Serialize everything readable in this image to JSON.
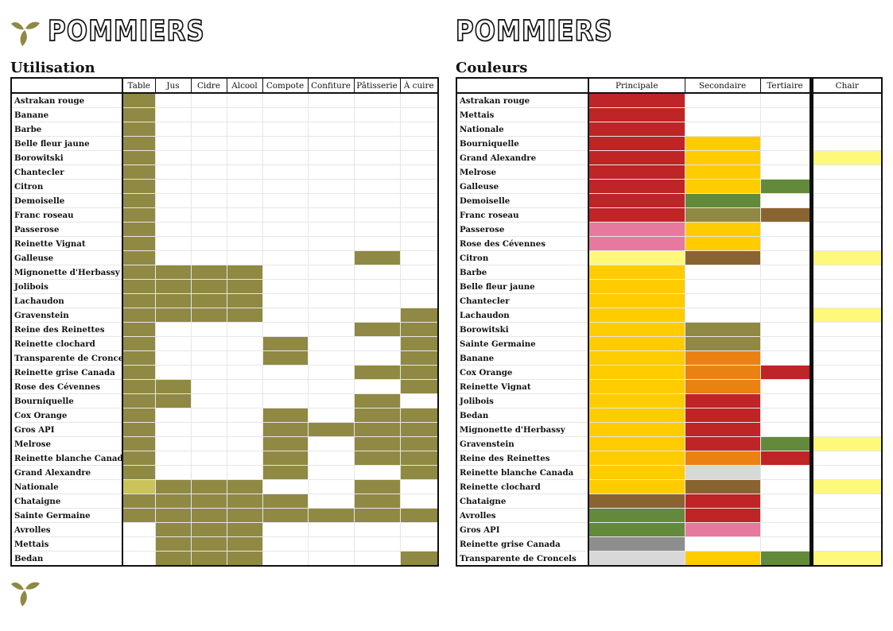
{
  "header": {
    "left_title": "POMMIERS",
    "right_title": "POMMIERS"
  },
  "colors": {
    "olive": "#8f8943",
    "olive_light": "#c9c35a",
    "red": "#bf2427",
    "yellow": "#ffcc00",
    "green": "#628a3a",
    "khaki": "#8f8943",
    "brown": "#8a6430",
    "pink": "#e7789e",
    "pale_yellow": "#fef97a",
    "orange": "#ea8212",
    "grey": "#8e8e8e",
    "light_grey": "#d8d8d8"
  },
  "utilisation": {
    "title": "Utilisation",
    "columns": [
      "Table",
      "Jus",
      "Cidre",
      "Alcool",
      "Compote",
      "Confiture",
      "Pâtisserie",
      "À cuire"
    ],
    "rows": [
      {
        "name": "Astrakan rouge",
        "cells": [
          1,
          0,
          0,
          0,
          0,
          0,
          0,
          0
        ]
      },
      {
        "name": "Banane",
        "cells": [
          1,
          0,
          0,
          0,
          0,
          0,
          0,
          0
        ]
      },
      {
        "name": "Barbe",
        "cells": [
          1,
          0,
          0,
          0,
          0,
          0,
          0,
          0
        ]
      },
      {
        "name": "Belle fleur jaune",
        "cells": [
          1,
          0,
          0,
          0,
          0,
          0,
          0,
          0
        ]
      },
      {
        "name": "Borowitski",
        "cells": [
          1,
          0,
          0,
          0,
          0,
          0,
          0,
          0
        ]
      },
      {
        "name": "Chantecler",
        "cells": [
          1,
          0,
          0,
          0,
          0,
          0,
          0,
          0
        ]
      },
      {
        "name": "Citron",
        "cells": [
          1,
          0,
          0,
          0,
          0,
          0,
          0,
          0
        ]
      },
      {
        "name": "Demoiselle",
        "cells": [
          1,
          0,
          0,
          0,
          0,
          0,
          0,
          0
        ]
      },
      {
        "name": "Franc roseau",
        "cells": [
          1,
          0,
          0,
          0,
          0,
          0,
          0,
          0
        ]
      },
      {
        "name": "Passerose",
        "cells": [
          1,
          0,
          0,
          0,
          0,
          0,
          0,
          0
        ]
      },
      {
        "name": "Reinette Vignat",
        "cells": [
          1,
          0,
          0,
          0,
          0,
          0,
          0,
          0
        ]
      },
      {
        "name": "Galleuse",
        "cells": [
          1,
          0,
          0,
          0,
          0,
          0,
          1,
          0
        ]
      },
      {
        "name": "Mignonette d'Herbassy",
        "cells": [
          1,
          1,
          1,
          1,
          0,
          0,
          0,
          0
        ]
      },
      {
        "name": "Jolibois",
        "cells": [
          1,
          1,
          1,
          1,
          0,
          0,
          0,
          0
        ]
      },
      {
        "name": "Lachaudon",
        "cells": [
          1,
          1,
          1,
          1,
          0,
          0,
          0,
          0
        ]
      },
      {
        "name": "Gravenstein",
        "cells": [
          1,
          1,
          1,
          1,
          0,
          0,
          0,
          1
        ]
      },
      {
        "name": "Reine des Reinettes",
        "cells": [
          1,
          0,
          0,
          0,
          0,
          0,
          1,
          1
        ]
      },
      {
        "name": "Reinette clochard",
        "cells": [
          1,
          0,
          0,
          0,
          1,
          0,
          0,
          1
        ]
      },
      {
        "name": "Transparente de Croncels",
        "cells": [
          1,
          0,
          0,
          0,
          1,
          0,
          0,
          1
        ]
      },
      {
        "name": "Reinette grise Canada",
        "cells": [
          1,
          0,
          0,
          0,
          0,
          0,
          1,
          1
        ]
      },
      {
        "name": "Rose des Cévennes",
        "cells": [
          1,
          1,
          0,
          0,
          0,
          0,
          0,
          1
        ]
      },
      {
        "name": "Bourniquelle",
        "cells": [
          1,
          1,
          0,
          0,
          0,
          0,
          1,
          0
        ]
      },
      {
        "name": "Cox Orange",
        "cells": [
          1,
          0,
          0,
          0,
          1,
          0,
          1,
          1
        ]
      },
      {
        "name": "Gros API",
        "cells": [
          1,
          0,
          0,
          0,
          1,
          1,
          1,
          1
        ]
      },
      {
        "name": "Melrose",
        "cells": [
          1,
          0,
          0,
          0,
          1,
          0,
          1,
          1
        ]
      },
      {
        "name": "Reinette blanche Canada",
        "cells": [
          1,
          0,
          0,
          0,
          1,
          0,
          1,
          1
        ]
      },
      {
        "name": "Grand Alexandre",
        "cells": [
          1,
          0,
          0,
          0,
          1,
          0,
          0,
          1
        ]
      },
      {
        "name": "Nationale",
        "cells": [
          2,
          1,
          1,
          1,
          0,
          0,
          1,
          0
        ]
      },
      {
        "name": "Chataigne",
        "cells": [
          1,
          1,
          1,
          1,
          1,
          0,
          1,
          0
        ]
      },
      {
        "name": "Sainte Germaine",
        "cells": [
          1,
          1,
          1,
          1,
          1,
          1,
          1,
          1
        ]
      },
      {
        "name": "Avrolles",
        "cells": [
          0,
          1,
          1,
          1,
          0,
          0,
          0,
          0
        ]
      },
      {
        "name": "Mettais",
        "cells": [
          0,
          1,
          1,
          1,
          0,
          0,
          0,
          0
        ]
      },
      {
        "name": "Bedan",
        "cells": [
          0,
          1,
          1,
          1,
          0,
          0,
          0,
          1
        ]
      }
    ]
  },
  "couleurs": {
    "title": "Couleurs",
    "columns": [
      "Principale",
      "Secondaire",
      "Tertiaire",
      "Chair"
    ],
    "rows": [
      {
        "name": "Astrakan rouge",
        "cells": [
          "red",
          "",
          "",
          ""
        ]
      },
      {
        "name": "Mettais",
        "cells": [
          "red",
          "",
          "",
          ""
        ]
      },
      {
        "name": "Nationale",
        "cells": [
          "red",
          "",
          "",
          ""
        ]
      },
      {
        "name": "Bourniquelle",
        "cells": [
          "red",
          "yellow",
          "",
          ""
        ]
      },
      {
        "name": "Grand Alexandre",
        "cells": [
          "red",
          "yellow",
          "",
          "pale_yellow"
        ]
      },
      {
        "name": "Melrose",
        "cells": [
          "red",
          "yellow",
          "",
          ""
        ]
      },
      {
        "name": "Galleuse",
        "cells": [
          "red",
          "yellow",
          "green",
          ""
        ]
      },
      {
        "name": "Demoiselle",
        "cells": [
          "red",
          "green",
          "",
          ""
        ]
      },
      {
        "name": "Franc roseau",
        "cells": [
          "red",
          "khaki",
          "brown",
          ""
        ]
      },
      {
        "name": "Passerose",
        "cells": [
          "pink",
          "yellow",
          "",
          ""
        ]
      },
      {
        "name": "Rose des Cévennes",
        "cells": [
          "pink",
          "yellow",
          "",
          ""
        ]
      },
      {
        "name": "Citron",
        "cells": [
          "pale_yellow",
          "brown",
          "",
          "pale_yellow"
        ]
      },
      {
        "name": "Barbe",
        "cells": [
          "yellow",
          "",
          "",
          ""
        ]
      },
      {
        "name": "Belle fleur jaune",
        "cells": [
          "yellow",
          "",
          "",
          ""
        ]
      },
      {
        "name": "Chantecler",
        "cells": [
          "yellow",
          "",
          "",
          ""
        ]
      },
      {
        "name": "Lachaudon",
        "cells": [
          "yellow",
          "",
          "",
          "pale_yellow"
        ]
      },
      {
        "name": "Borowitski",
        "cells": [
          "yellow",
          "khaki",
          "",
          ""
        ]
      },
      {
        "name": "Sainte Germaine",
        "cells": [
          "yellow",
          "khaki",
          "",
          ""
        ]
      },
      {
        "name": "Banane",
        "cells": [
          "yellow",
          "orange",
          "",
          ""
        ]
      },
      {
        "name": "Cox Orange",
        "cells": [
          "yellow",
          "orange",
          "red",
          ""
        ]
      },
      {
        "name": "Reinette Vignat",
        "cells": [
          "yellow",
          "orange",
          "",
          ""
        ]
      },
      {
        "name": "Jolibois",
        "cells": [
          "yellow",
          "red",
          "",
          ""
        ]
      },
      {
        "name": "Bedan",
        "cells": [
          "yellow",
          "red",
          "",
          ""
        ]
      },
      {
        "name": "Mignonette d'Herbassy",
        "cells": [
          "yellow",
          "red",
          "",
          ""
        ]
      },
      {
        "name": "Gravenstein",
        "cells": [
          "yellow",
          "red",
          "green",
          "pale_yellow"
        ]
      },
      {
        "name": "Reine des Reinettes",
        "cells": [
          "yellow",
          "orange",
          "red",
          ""
        ]
      },
      {
        "name": "Reinette blanche Canada",
        "cells": [
          "yellow",
          "light_grey",
          "",
          ""
        ]
      },
      {
        "name": "Reinette clochard",
        "cells": [
          "yellow",
          "brown",
          "",
          "pale_yellow"
        ]
      },
      {
        "name": "Chataigne",
        "cells": [
          "brown",
          "red",
          "",
          ""
        ]
      },
      {
        "name": "Avrolles",
        "cells": [
          "green",
          "red",
          "",
          ""
        ]
      },
      {
        "name": "Gros API",
        "cells": [
          "green",
          "pink",
          "",
          ""
        ]
      },
      {
        "name": "Reinette grise Canada",
        "cells": [
          "grey",
          "",
          "",
          ""
        ]
      },
      {
        "name": "Transparente de Croncels",
        "cells": [
          "light_grey",
          "yellow",
          "green",
          "pale_yellow"
        ]
      }
    ]
  }
}
